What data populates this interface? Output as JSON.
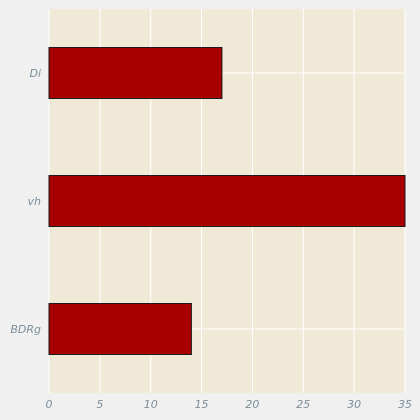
{
  "colors": {
    "figure_background": "#f0f0f0",
    "plot_background": "#f0e9d8",
    "grid": "#ffffff",
    "bar_fill": "#a80000",
    "bar_edge": "#1a1a1a",
    "tick_label": "#7d8f9a"
  },
  "chart_data": {
    "type": "bar",
    "orientation": "horizontal",
    "categories": [
      "Di",
      "vh",
      "BDRg"
    ],
    "values": [
      17,
      35,
      14
    ],
    "x_ticks": [
      "0",
      "5",
      "10",
      "15",
      "20",
      "25",
      "30",
      "35"
    ],
    "xlim": [
      0,
      35
    ],
    "grid": true,
    "title": "",
    "xlabel": "",
    "ylabel": ""
  }
}
